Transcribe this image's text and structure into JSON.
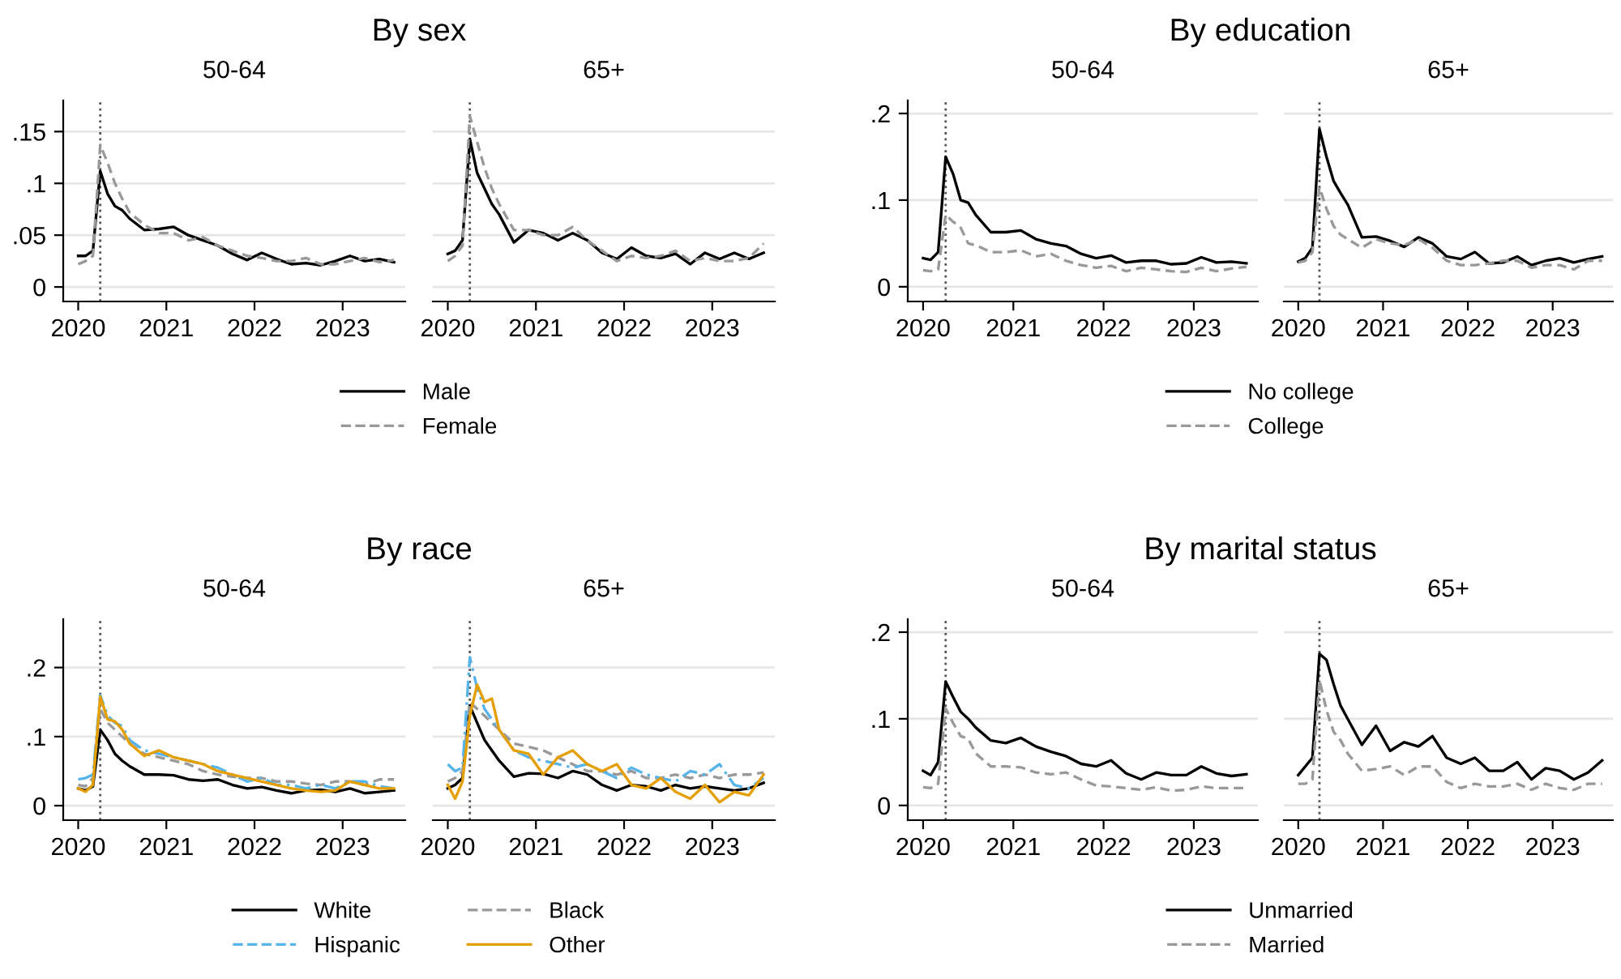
{
  "chart_data": [
    {
      "type": "line",
      "title": "By sex",
      "subtitle": "50-64",
      "legend": "bottom",
      "grid": "y",
      "xlim": [
        2019.83,
        2023.71
      ],
      "xticks": [
        2020,
        2021,
        2022,
        2023
      ],
      "ylim": [
        -0.014,
        0.18
      ],
      "yticks": [
        {
          "value": 0,
          "label": "0"
        },
        {
          "value": 0.05,
          "label": ".05"
        },
        {
          "value": 0.1,
          "label": ".1"
        },
        {
          "value": 0.15,
          "label": ".15"
        }
      ],
      "ref_lines": [
        {
          "axis": "x",
          "value": 2020.25,
          "color": "#555555",
          "line_style": "dotted"
        }
      ],
      "x": [
        2020.0,
        2020.083,
        2020.167,
        2020.25,
        2020.333,
        2020.417,
        2020.5,
        2020.583,
        2020.75,
        2020.917,
        2021.083,
        2021.25,
        2021.417,
        2021.583,
        2021.75,
        2021.917,
        2022.083,
        2022.25,
        2022.417,
        2022.583,
        2022.75,
        2022.917,
        2023.083,
        2023.25,
        2023.417,
        2023.583
      ],
      "series": [
        {
          "name": "Male",
          "color": "#000000",
          "line_style": "solid",
          "values": [
            0.03,
            0.03,
            0.035,
            0.112,
            0.09,
            0.078,
            0.074,
            0.066,
            0.055,
            0.056,
            0.058,
            0.05,
            0.045,
            0.04,
            0.032,
            0.026,
            0.033,
            0.027,
            0.022,
            0.023,
            0.021,
            0.025,
            0.03,
            0.025,
            0.027,
            0.024
          ]
        },
        {
          "name": "Female",
          "color": "#999999",
          "line_style": "dashed",
          "values": [
            0.022,
            0.025,
            0.03,
            0.137,
            0.12,
            0.1,
            0.085,
            0.072,
            0.06,
            0.052,
            0.052,
            0.045,
            0.048,
            0.04,
            0.035,
            0.03,
            0.028,
            0.025,
            0.025,
            0.028,
            0.022,
            0.022,
            0.025,
            0.028,
            0.024,
            0.026
          ]
        }
      ]
    },
    {
      "type": "line",
      "subtitle": "65+",
      "tick_labels": "x",
      "grid": "y",
      "xlim": [
        2019.83,
        2023.71
      ],
      "xticks": [
        2020,
        2021,
        2022,
        2023
      ],
      "ylim": [
        -0.014,
        0.18
      ],
      "ref_lines": [
        {
          "axis": "x",
          "value": 2020.25,
          "color": "#555555",
          "line_style": "dotted"
        }
      ],
      "x": [
        2020.0,
        2020.083,
        2020.167,
        2020.25,
        2020.333,
        2020.417,
        2020.5,
        2020.583,
        2020.75,
        2020.917,
        2021.083,
        2021.25,
        2021.417,
        2021.583,
        2021.75,
        2021.917,
        2022.083,
        2022.25,
        2022.417,
        2022.583,
        2022.75,
        2022.917,
        2023.083,
        2023.25,
        2023.417,
        2023.583
      ],
      "series": [
        {
          "color": "#000000",
          "line_style": "solid",
          "values": [
            0.032,
            0.035,
            0.045,
            0.143,
            0.11,
            0.095,
            0.08,
            0.07,
            0.043,
            0.055,
            0.052,
            0.045,
            0.052,
            0.045,
            0.033,
            0.027,
            0.038,
            0.03,
            0.028,
            0.032,
            0.022,
            0.033,
            0.027,
            0.033,
            0.027,
            0.033
          ]
        },
        {
          "color": "#999999",
          "line_style": "dashed",
          "values": [
            0.025,
            0.03,
            0.04,
            0.165,
            0.14,
            0.115,
            0.095,
            0.08,
            0.055,
            0.055,
            0.05,
            0.05,
            0.058,
            0.045,
            0.035,
            0.025,
            0.03,
            0.028,
            0.03,
            0.035,
            0.025,
            0.028,
            0.025,
            0.025,
            0.028,
            0.042
          ]
        }
      ]
    },
    {
      "type": "line",
      "title": "By education",
      "subtitle": "50-64",
      "legend": "bottom",
      "grid": "y",
      "xlim": [
        2019.83,
        2023.71
      ],
      "xticks": [
        2020,
        2021,
        2022,
        2023
      ],
      "ylim": [
        -0.017,
        0.215
      ],
      "yticks": [
        {
          "value": 0,
          "label": "0"
        },
        {
          "value": 0.1,
          "label": ".1"
        },
        {
          "value": 0.2,
          "label": ".2"
        }
      ],
      "ref_lines": [
        {
          "axis": "x",
          "value": 2020.25,
          "color": "#555555",
          "line_style": "dotted"
        }
      ],
      "x": [
        2020.0,
        2020.083,
        2020.167,
        2020.25,
        2020.333,
        2020.417,
        2020.5,
        2020.583,
        2020.75,
        2020.917,
        2021.083,
        2021.25,
        2021.417,
        2021.583,
        2021.75,
        2021.917,
        2022.083,
        2022.25,
        2022.417,
        2022.583,
        2022.75,
        2022.917,
        2023.083,
        2023.25,
        2023.417,
        2023.583
      ],
      "series": [
        {
          "name": "No college",
          "color": "#000000",
          "line_style": "solid",
          "values": [
            0.033,
            0.031,
            0.04,
            0.15,
            0.13,
            0.1,
            0.097,
            0.083,
            0.063,
            0.063,
            0.065,
            0.055,
            0.05,
            0.047,
            0.038,
            0.033,
            0.036,
            0.028,
            0.03,
            0.03,
            0.026,
            0.027,
            0.034,
            0.028,
            0.029,
            0.027
          ]
        },
        {
          "name": "College",
          "color": "#999999",
          "line_style": "dashed",
          "values": [
            0.019,
            0.018,
            0.02,
            0.083,
            0.075,
            0.068,
            0.05,
            0.048,
            0.04,
            0.04,
            0.042,
            0.035,
            0.038,
            0.03,
            0.025,
            0.022,
            0.024,
            0.018,
            0.022,
            0.02,
            0.018,
            0.017,
            0.022,
            0.018,
            0.021,
            0.023
          ]
        }
      ]
    },
    {
      "type": "line",
      "subtitle": "65+",
      "tick_labels": "x",
      "grid": "y",
      "xlim": [
        2019.83,
        2023.71
      ],
      "xticks": [
        2020,
        2021,
        2022,
        2023
      ],
      "ylim": [
        -0.017,
        0.215
      ],
      "ref_lines": [
        {
          "axis": "x",
          "value": 2020.25,
          "color": "#555555",
          "line_style": "dotted"
        }
      ],
      "x": [
        2020.0,
        2020.083,
        2020.167,
        2020.25,
        2020.333,
        2020.417,
        2020.5,
        2020.583,
        2020.75,
        2020.917,
        2021.083,
        2021.25,
        2021.417,
        2021.583,
        2021.75,
        2021.917,
        2022.083,
        2022.25,
        2022.417,
        2022.583,
        2022.75,
        2022.917,
        2023.083,
        2023.25,
        2023.417,
        2023.583
      ],
      "series": [
        {
          "color": "#000000",
          "line_style": "solid",
          "values": [
            0.029,
            0.033,
            0.045,
            0.182,
            0.15,
            0.122,
            0.108,
            0.095,
            0.057,
            0.058,
            0.053,
            0.046,
            0.057,
            0.05,
            0.035,
            0.032,
            0.04,
            0.027,
            0.028,
            0.035,
            0.025,
            0.03,
            0.033,
            0.028,
            0.032,
            0.035
          ]
        },
        {
          "color": "#999999",
          "line_style": "dashed",
          "values": [
            0.028,
            0.03,
            0.04,
            0.115,
            0.09,
            0.07,
            0.06,
            0.055,
            0.045,
            0.055,
            0.05,
            0.048,
            0.055,
            0.045,
            0.03,
            0.025,
            0.025,
            0.027,
            0.03,
            0.03,
            0.022,
            0.025,
            0.025,
            0.02,
            0.03,
            0.03
          ]
        }
      ]
    },
    {
      "type": "line",
      "title": "By race",
      "subtitle": "50-64",
      "legend": "bottom",
      "grid": "y",
      "xlim": [
        2019.83,
        2023.71
      ],
      "xticks": [
        2020,
        2021,
        2022,
        2023
      ],
      "ylim": [
        -0.021,
        0.27
      ],
      "yticks": [
        {
          "value": 0,
          "label": "0"
        },
        {
          "value": 0.1,
          "label": ".1"
        },
        {
          "value": 0.2,
          "label": ".2"
        }
      ],
      "ref_lines": [
        {
          "axis": "x",
          "value": 2020.25,
          "color": "#555555",
          "line_style": "dotted"
        }
      ],
      "x": [
        2020.0,
        2020.083,
        2020.167,
        2020.25,
        2020.333,
        2020.417,
        2020.5,
        2020.583,
        2020.75,
        2020.917,
        2021.083,
        2021.25,
        2021.417,
        2021.583,
        2021.75,
        2021.917,
        2022.083,
        2022.25,
        2022.417,
        2022.583,
        2022.75,
        2022.917,
        2023.083,
        2023.25,
        2023.417,
        2023.583
      ],
      "series": [
        {
          "name": "White",
          "color": "#000000",
          "line_style": "solid",
          "values": [
            0.025,
            0.022,
            0.028,
            0.11,
            0.095,
            0.075,
            0.065,
            0.057,
            0.045,
            0.045,
            0.044,
            0.038,
            0.036,
            0.038,
            0.03,
            0.025,
            0.027,
            0.022,
            0.018,
            0.022,
            0.023,
            0.02,
            0.025,
            0.018,
            0.02,
            0.022
          ]
        },
        {
          "name": "Black",
          "color": "#999999",
          "line_style": "dashed",
          "values": [
            0.03,
            0.028,
            0.04,
            0.14,
            0.12,
            0.11,
            0.1,
            0.09,
            0.075,
            0.07,
            0.065,
            0.06,
            0.05,
            0.045,
            0.042,
            0.04,
            0.04,
            0.035,
            0.035,
            0.032,
            0.03,
            0.035,
            0.035,
            0.03,
            0.038,
            0.038
          ]
        },
        {
          "name": "Hispanic",
          "color": "#56b4e9",
          "line_style": "dashdot",
          "values": [
            0.038,
            0.04,
            0.045,
            0.16,
            0.13,
            0.12,
            0.115,
            0.095,
            0.08,
            0.075,
            0.07,
            0.065,
            0.06,
            0.055,
            0.045,
            0.035,
            0.04,
            0.03,
            0.03,
            0.025,
            0.03,
            0.025,
            0.035,
            0.035,
            0.028,
            0.025
          ]
        },
        {
          "name": "Other",
          "color": "#e69f00",
          "line_style": "solid",
          "values": [
            0.025,
            0.02,
            0.03,
            0.158,
            0.125,
            0.122,
            0.11,
            0.09,
            0.072,
            0.08,
            0.07,
            0.065,
            0.06,
            0.05,
            0.045,
            0.04,
            0.035,
            0.03,
            0.025,
            0.022,
            0.02,
            0.022,
            0.035,
            0.03,
            0.025,
            0.025
          ]
        }
      ]
    },
    {
      "type": "line",
      "subtitle": "65+",
      "tick_labels": "x",
      "grid": "y",
      "xlim": [
        2019.83,
        2023.71
      ],
      "xticks": [
        2020,
        2021,
        2022,
        2023
      ],
      "ylim": [
        -0.021,
        0.27
      ],
      "ref_lines": [
        {
          "axis": "x",
          "value": 2020.25,
          "color": "#555555",
          "line_style": "dotted"
        }
      ],
      "x": [
        2020.0,
        2020.083,
        2020.167,
        2020.25,
        2020.333,
        2020.417,
        2020.5,
        2020.583,
        2020.75,
        2020.917,
        2021.083,
        2021.25,
        2021.417,
        2021.583,
        2021.75,
        2021.917,
        2022.083,
        2022.25,
        2022.417,
        2022.583,
        2022.75,
        2022.917,
        2023.083,
        2023.25,
        2023.417,
        2023.583
      ],
      "series": [
        {
          "color": "#000000",
          "line_style": "solid",
          "values": [
            0.025,
            0.03,
            0.04,
            0.145,
            0.12,
            0.095,
            0.08,
            0.065,
            0.042,
            0.047,
            0.046,
            0.04,
            0.05,
            0.045,
            0.03,
            0.022,
            0.03,
            0.028,
            0.022,
            0.03,
            0.025,
            0.028,
            0.025,
            0.022,
            0.025,
            0.033
          ]
        },
        {
          "color": "#999999",
          "line_style": "dashed",
          "values": [
            0.035,
            0.04,
            0.05,
            0.15,
            0.14,
            0.13,
            0.12,
            0.11,
            0.09,
            0.085,
            0.08,
            0.07,
            0.06,
            0.05,
            0.05,
            0.045,
            0.05,
            0.04,
            0.04,
            0.045,
            0.04,
            0.045,
            0.04,
            0.045,
            0.045,
            0.048
          ]
        },
        {
          "color": "#56b4e9",
          "line_style": "dashdot",
          "values": [
            0.06,
            0.05,
            0.055,
            0.215,
            0.17,
            0.14,
            0.125,
            0.11,
            0.08,
            0.07,
            0.065,
            0.06,
            0.055,
            0.06,
            0.05,
            0.04,
            0.055,
            0.045,
            0.04,
            0.035,
            0.05,
            0.045,
            0.06,
            0.03,
            0.025,
            0.04
          ]
        },
        {
          "color": "#e69f00",
          "line_style": "solid",
          "values": [
            0.03,
            0.01,
            0.035,
            0.13,
            0.175,
            0.15,
            0.155,
            0.11,
            0.08,
            0.075,
            0.045,
            0.07,
            0.08,
            0.06,
            0.05,
            0.06,
            0.03,
            0.025,
            0.04,
            0.02,
            0.01,
            0.03,
            0.005,
            0.02,
            0.015,
            0.045
          ]
        }
      ]
    },
    {
      "type": "line",
      "title": "By marital status",
      "subtitle": "50-64",
      "legend": "bottom",
      "grid": "y",
      "xlim": [
        2019.83,
        2023.71
      ],
      "xticks": [
        2020,
        2021,
        2022,
        2023
      ],
      "ylim": [
        -0.017,
        0.215
      ],
      "yticks": [
        {
          "value": 0,
          "label": "0"
        },
        {
          "value": 0.1,
          "label": ".1"
        },
        {
          "value": 0.2,
          "label": ".2"
        }
      ],
      "ref_lines": [
        {
          "axis": "x",
          "value": 2020.25,
          "color": "#555555",
          "line_style": "dotted"
        }
      ],
      "x": [
        2020.0,
        2020.083,
        2020.167,
        2020.25,
        2020.333,
        2020.417,
        2020.5,
        2020.583,
        2020.75,
        2020.917,
        2021.083,
        2021.25,
        2021.417,
        2021.583,
        2021.75,
        2021.917,
        2022.083,
        2022.25,
        2022.417,
        2022.583,
        2022.75,
        2022.917,
        2023.083,
        2023.25,
        2023.417,
        2023.583
      ],
      "series": [
        {
          "name": "Unmarried",
          "color": "#000000",
          "line_style": "solid",
          "values": [
            0.04,
            0.035,
            0.05,
            0.143,
            0.125,
            0.108,
            0.1,
            0.09,
            0.075,
            0.072,
            0.078,
            0.068,
            0.062,
            0.057,
            0.048,
            0.045,
            0.052,
            0.037,
            0.03,
            0.038,
            0.035,
            0.035,
            0.045,
            0.037,
            0.034,
            0.036
          ]
        },
        {
          "name": "Married",
          "color": "#999999",
          "line_style": "dashed",
          "values": [
            0.021,
            0.02,
            0.025,
            0.112,
            0.095,
            0.08,
            0.077,
            0.06,
            0.045,
            0.045,
            0.044,
            0.038,
            0.036,
            0.038,
            0.03,
            0.023,
            0.022,
            0.02,
            0.018,
            0.021,
            0.017,
            0.018,
            0.022,
            0.02,
            0.02,
            0.02
          ]
        }
      ]
    },
    {
      "type": "line",
      "subtitle": "65+",
      "tick_labels": "x",
      "grid": "y",
      "xlim": [
        2019.83,
        2023.71
      ],
      "xticks": [
        2020,
        2021,
        2022,
        2023
      ],
      "ylim": [
        -0.017,
        0.215
      ],
      "ref_lines": [
        {
          "axis": "x",
          "value": 2020.25,
          "color": "#555555",
          "line_style": "dotted"
        }
      ],
      "x": [
        2020.0,
        2020.083,
        2020.167,
        2020.25,
        2020.333,
        2020.417,
        2020.5,
        2020.583,
        2020.75,
        2020.917,
        2021.083,
        2021.25,
        2021.417,
        2021.583,
        2021.75,
        2021.917,
        2022.083,
        2022.25,
        2022.417,
        2022.583,
        2022.75,
        2022.917,
        2023.083,
        2023.25,
        2023.417,
        2023.583
      ],
      "series": [
        {
          "color": "#000000",
          "line_style": "solid",
          "values": [
            0.035,
            0.045,
            0.055,
            0.175,
            0.168,
            0.14,
            0.115,
            0.1,
            0.07,
            0.092,
            0.063,
            0.073,
            0.068,
            0.08,
            0.055,
            0.048,
            0.055,
            0.04,
            0.04,
            0.05,
            0.03,
            0.043,
            0.04,
            0.03,
            0.038,
            0.052
          ]
        },
        {
          "color": "#999999",
          "line_style": "dashed",
          "values": [
            0.025,
            0.025,
            0.03,
            0.145,
            0.11,
            0.085,
            0.075,
            0.06,
            0.04,
            0.042,
            0.045,
            0.035,
            0.045,
            0.045,
            0.027,
            0.02,
            0.025,
            0.022,
            0.022,
            0.025,
            0.018,
            0.025,
            0.02,
            0.018,
            0.025,
            0.025
          ]
        }
      ]
    }
  ]
}
